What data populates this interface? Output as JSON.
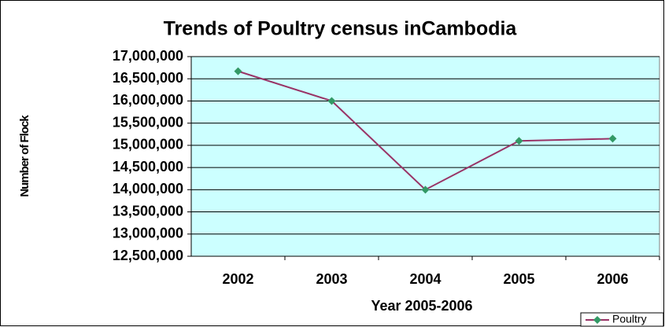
{
  "chart_data": {
    "type": "line",
    "title": "Trends of Poultry census inCambodia",
    "x_label": "Year 2005-2006",
    "y_label": "Number of Flock",
    "categories": [
      "2002",
      "2003",
      "2004",
      "2005",
      "2006"
    ],
    "series": [
      {
        "name": "Poultry",
        "color": "#993366",
        "marker_color": "#339966",
        "values": [
          16670000,
          16000000,
          14000000,
          15100000,
          15150000
        ]
      }
    ],
    "ylim": [
      12500000,
      17000000
    ],
    "yticks": [
      {
        "value": 12500000,
        "label": "12,500,000"
      },
      {
        "value": 13000000,
        "label": "13,000,000"
      },
      {
        "value": 13500000,
        "label": "13,500,000"
      },
      {
        "value": 14000000,
        "label": "14,000,000"
      },
      {
        "value": 14500000,
        "label": "14,500,000"
      },
      {
        "value": 15000000,
        "label": "15,000,000"
      },
      {
        "value": 15500000,
        "label": "15,500,000"
      },
      {
        "value": 16000000,
        "label": "16,000,000"
      },
      {
        "value": 16500000,
        "label": "16,500,000"
      },
      {
        "value": 17000000,
        "label": "17,000,000"
      }
    ],
    "grid": true,
    "legend": "bottom-right"
  }
}
